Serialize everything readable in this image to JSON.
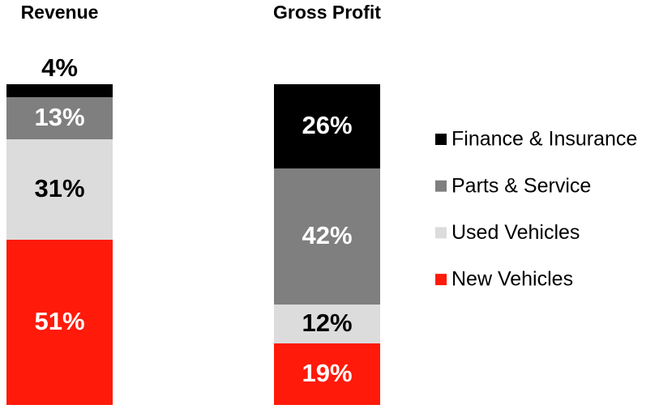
{
  "chart_data": {
    "type": "stacked_bar",
    "categories": [
      "Revenue",
      "Gross Profit"
    ],
    "series": [
      {
        "name": "New Vehicles",
        "color": "#ff1a0a",
        "values": [
          51,
          19
        ],
        "value_labels": [
          "51%",
          "19%"
        ]
      },
      {
        "name": "Used Vehicles",
        "color": "#dcdcdc",
        "values": [
          31,
          12
        ],
        "value_labels": [
          "31%",
          "12%"
        ]
      },
      {
        "name": "Parts & Service",
        "color": "#7f7f7f",
        "values": [
          13,
          42
        ],
        "value_labels": [
          "13%",
          "42%"
        ]
      },
      {
        "name": "Finance & Insurance",
        "color": "#000000",
        "values": [
          4,
          26
        ],
        "value_labels": [
          "4%",
          "26%"
        ]
      }
    ]
  }
}
